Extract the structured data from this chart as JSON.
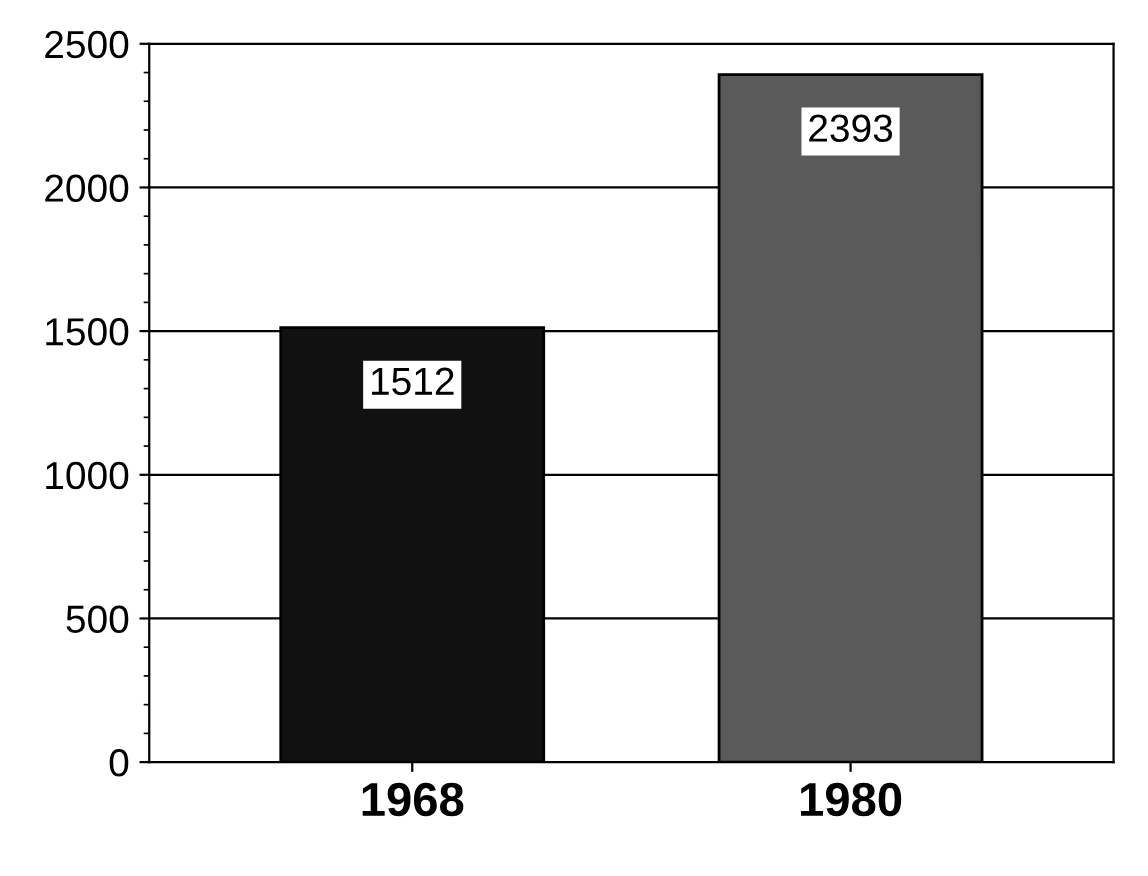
{
  "chart_data": {
    "type": "bar",
    "categories": [
      "1968",
      "1980"
    ],
    "values": [
      1512,
      2393
    ],
    "colors": [
      "#111111",
      "#5a5a5a"
    ],
    "ylim": [
      0,
      2500
    ],
    "yticks": [
      0,
      500,
      1000,
      1500,
      2000,
      2500
    ],
    "grid": "y",
    "data_labels": true
  }
}
